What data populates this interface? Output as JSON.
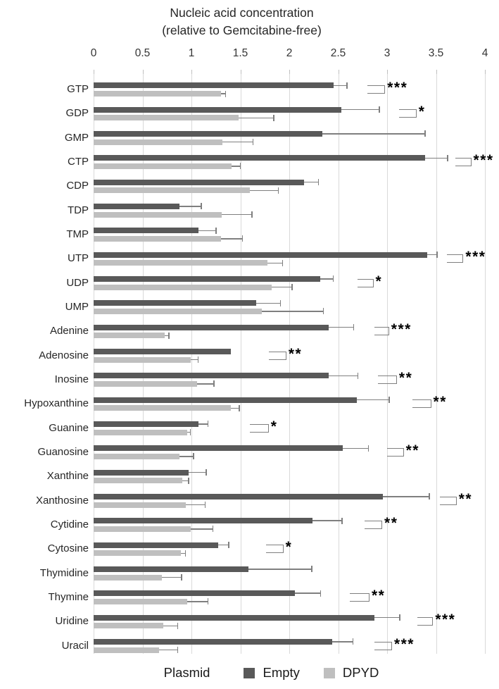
{
  "colors": {
    "empty_bar": "#595959",
    "dpyd_bar": "#bfbfbf",
    "error_bar": "#7f7f7f",
    "gridline": "#d9d9d9",
    "tick": "#bfbfbf",
    "bracket": "#7f7f7f",
    "text": "#262626"
  },
  "chart_data": {
    "type": "bar",
    "orientation": "horizontal",
    "title": "Nucleic acid concentration (relative to Gemcitabine-free)",
    "title_lines": [
      "Nucleic acid concentration",
      "(relative to Gemcitabine-free)"
    ],
    "xlabel": "",
    "ylabel": "",
    "xlim": [
      0,
      4
    ],
    "x_ticks": [
      0,
      0.5,
      1,
      1.5,
      2,
      2.5,
      3,
      3.5,
      4
    ],
    "grid": true,
    "categories": [
      "GTP",
      "GDP",
      "GMP",
      "CTP",
      "CDP",
      "TDP",
      "TMP",
      "UTP",
      "UDP",
      "UMP",
      "Adenine",
      "Adenosine",
      "Inosine",
      "Hypoxanthine",
      "Guanine",
      "Guanosine",
      "Xanthine",
      "Xanthosine",
      "Cytidine",
      "Cytosine",
      "Thymidine",
      "Thymine",
      "Uridine",
      "Uracil"
    ],
    "series": [
      {
        "name": "Empty",
        "color": "#595959",
        "values": [
          2.45,
          2.53,
          2.34,
          3.39,
          2.15,
          0.88,
          1.07,
          3.41,
          2.32,
          1.66,
          2.4,
          1.4,
          2.4,
          2.69,
          1.07,
          2.55,
          0.97,
          2.96,
          2.24,
          1.27,
          1.58,
          2.06,
          2.87,
          2.44
        ],
        "errors": [
          0.14,
          0.39,
          1.05,
          0.23,
          0.15,
          0.22,
          0.18,
          0.1,
          0.13,
          0.25,
          0.26,
          0,
          0.3,
          0.33,
          0.1,
          0.26,
          0.18,
          0.47,
          0.3,
          0.11,
          0.65,
          0.26,
          0.26,
          0.21
        ]
      },
      {
        "name": "DPYD",
        "color": "#bfbfbf",
        "values": [
          1.3,
          1.48,
          1.32,
          1.41,
          1.6,
          1.31,
          1.3,
          1.78,
          1.82,
          1.72,
          0.73,
          0.99,
          1.06,
          1.4,
          0.96,
          0.88,
          0.91,
          0.94,
          0.99,
          0.89,
          0.7,
          0.96,
          0.71,
          0.67
        ],
        "errors": [
          0.05,
          0.36,
          0.31,
          0.09,
          0.29,
          0.31,
          0.22,
          0.15,
          0.21,
          0.63,
          0.04,
          0.08,
          0.17,
          0.09,
          0.03,
          0.14,
          0.06,
          0.2,
          0.23,
          0.05,
          0.2,
          0.21,
          0.15,
          0.19
        ]
      }
    ],
    "significance": [
      {
        "category": "GTP",
        "label": "***",
        "bracket": [
          2.8,
          2.98
        ]
      },
      {
        "category": "GDP",
        "label": "*",
        "bracket": [
          3.12,
          3.3
        ]
      },
      {
        "category": "CTP",
        "label": "***",
        "bracket": [
          3.7,
          3.86
        ]
      },
      {
        "category": "UTP",
        "label": "***",
        "bracket": [
          3.61,
          3.78
        ]
      },
      {
        "category": "UDP",
        "label": "*",
        "bracket": [
          2.7,
          2.86
        ]
      },
      {
        "category": "Adenine",
        "label": "***",
        "bracket": [
          2.87,
          3.02
        ]
      },
      {
        "category": "Adenosine",
        "label": "**",
        "bracket": [
          1.79,
          1.97
        ]
      },
      {
        "category": "Inosine",
        "label": "**",
        "bracket": [
          2.91,
          3.1
        ]
      },
      {
        "category": "Hypoxanthine",
        "label": "**",
        "bracket": [
          3.26,
          3.45
        ]
      },
      {
        "category": "Guanine",
        "label": "*",
        "bracket": [
          1.6,
          1.79
        ]
      },
      {
        "category": "Guanosine",
        "label": "**",
        "bracket": [
          3.0,
          3.17
        ]
      },
      {
        "category": "Xanthosine",
        "label": "**",
        "bracket": [
          3.54,
          3.71
        ]
      },
      {
        "category": "Cytidine",
        "label": "**",
        "bracket": [
          2.77,
          2.95
        ]
      },
      {
        "category": "Cytosine",
        "label": "*",
        "bracket": [
          1.76,
          1.94
        ]
      },
      {
        "category": "Thymine",
        "label": "**",
        "bracket": [
          2.62,
          2.82
        ]
      },
      {
        "category": "Uridine",
        "label": "***",
        "bracket": [
          3.31,
          3.47
        ]
      },
      {
        "category": "Uracil",
        "label": "***",
        "bracket": [
          2.87,
          3.05
        ]
      }
    ],
    "legend": {
      "title": "Plasmid",
      "position": "bottom",
      "entries": [
        {
          "name": "Empty",
          "color": "#595959"
        },
        {
          "name": "DPYD",
          "color": "#bfbfbf"
        }
      ]
    }
  }
}
